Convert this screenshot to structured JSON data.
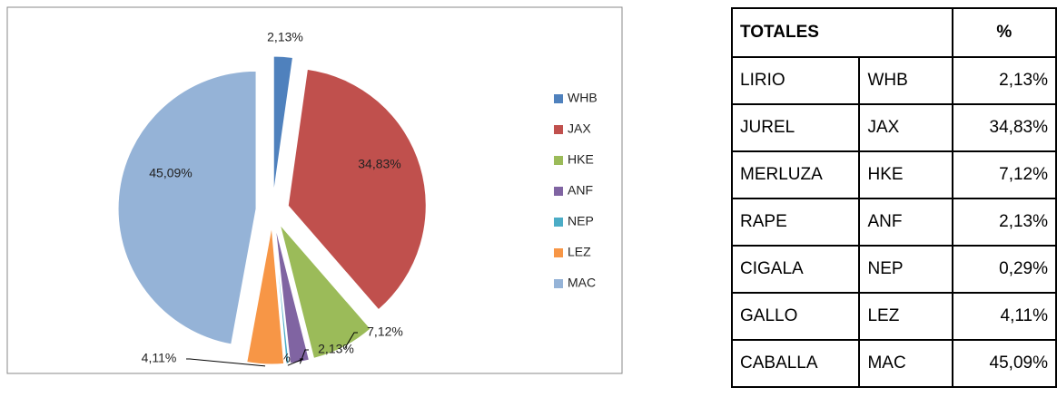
{
  "chart_data": {
    "type": "pie",
    "categories": [
      "WHB",
      "JAX",
      "HKE",
      "ANF",
      "NEP",
      "LEZ",
      "MAC"
    ],
    "values": [
      2.13,
      34.83,
      7.12,
      2.13,
      0.29,
      4.11,
      45.09
    ],
    "value_labels": [
      "2,13%",
      "34,83%",
      "7,12%",
      "2,13%",
      "0,29%",
      "4,11%",
      "45,09%"
    ],
    "colors": [
      "#4f81bd",
      "#c0504d",
      "#9bbb59",
      "#8064a2",
      "#4bacc6",
      "#f79646",
      "#95b3d7"
    ],
    "legend": "right"
  },
  "table": {
    "header": [
      "TOTALES",
      "%"
    ],
    "rows": [
      [
        "LIRIO",
        "WHB",
        "2,13%"
      ],
      [
        "JUREL",
        "JAX",
        "34,83%"
      ],
      [
        "MERLUZA",
        "HKE",
        "7,12%"
      ],
      [
        "RAPE",
        "ANF",
        "2,13%"
      ],
      [
        "CIGALA",
        "NEP",
        "0,29%"
      ],
      [
        "GALLO",
        "LEZ",
        "4,11%"
      ],
      [
        "CABALLA",
        "MAC",
        "45,09%"
      ]
    ]
  }
}
